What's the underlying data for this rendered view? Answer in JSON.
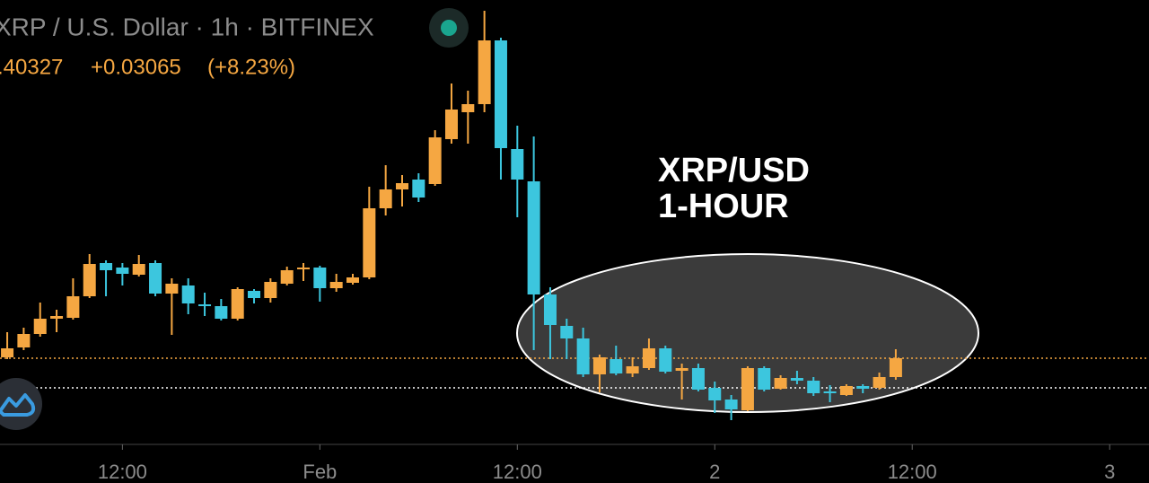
{
  "header": {
    "title": "XRP / U.S. Dollar · 1h · BITFINEX",
    "price": ".40327",
    "change": "+0.03065",
    "change_pct": "(+8.23%)"
  },
  "chart_data": {
    "type": "candlestick",
    "annotation": [
      "XRP/USD",
      "1-HOUR"
    ],
    "up_color": "#f5a742",
    "down_color": "#3cc6de",
    "x": [
      0,
      1,
      2,
      3,
      4,
      5,
      6,
      7,
      8,
      9,
      10,
      11,
      12,
      13,
      14,
      15,
      16,
      17,
      18,
      19,
      20,
      21,
      22,
      23,
      24,
      25,
      26,
      27,
      28,
      29,
      30,
      31,
      32,
      33,
      34,
      35,
      36,
      37,
      38,
      39,
      40,
      41,
      42,
      43,
      44,
      45,
      46,
      47,
      48,
      49,
      50,
      51,
      52,
      53,
      54
    ],
    "open": [
      0.4036,
      0.4069,
      0.4114,
      0.4165,
      0.4168,
      0.424,
      0.4351,
      0.4336,
      0.4312,
      0.4351,
      0.4249,
      0.4276,
      0.4213,
      0.4207,
      0.4165,
      0.4258,
      0.4234,
      0.4282,
      0.433,
      0.4336,
      0.4267,
      0.4285,
      0.4303,
      0.4534,
      0.4597,
      0.463,
      0.4615,
      0.4765,
      0.4855,
      0.4882,
      0.5095,
      0.4732,
      0.4624,
      0.4246,
      0.4141,
      0.4099,
      0.3979,
      0.403,
      0.3982,
      0.4,
      0.4066,
      0.3991,
      0.4,
      0.3934,
      0.3895,
      0.3859,
      0.4,
      0.3931,
      0.3967,
      0.3958,
      0.3922,
      0.391,
      0.394,
      0.3934,
      0.397
    ],
    "high": [
      0.412,
      0.4135,
      0.4219,
      0.4195,
      0.43,
      0.4381,
      0.436,
      0.4351,
      0.4378,
      0.436,
      0.43,
      0.43,
      0.4252,
      0.4231,
      0.427,
      0.4264,
      0.43,
      0.4339,
      0.4351,
      0.4342,
      0.4315,
      0.4315,
      0.4606,
      0.4678,
      0.4645,
      0.4651,
      0.4795,
      0.4951,
      0.4927,
      0.5194,
      0.5104,
      0.481,
      0.4774,
      0.427,
      0.4165,
      0.4135,
      0.4045,
      0.4075,
      0.4036,
      0.4099,
      0.4075,
      0.4015,
      0.4015,
      0.3955,
      0.391,
      0.4006,
      0.4006,
      0.3976,
      0.3991,
      0.397,
      0.3943,
      0.3946,
      0.3946,
      0.3985,
      0.4063
    ],
    "low": [
      0.403,
      0.406,
      0.4105,
      0.412,
      0.4162,
      0.4234,
      0.424,
      0.4276,
      0.4306,
      0.424,
      0.4111,
      0.418,
      0.4174,
      0.4159,
      0.4159,
      0.4216,
      0.4219,
      0.4276,
      0.4291,
      0.4222,
      0.4255,
      0.4279,
      0.4297,
      0.451,
      0.454,
      0.4555,
      0.4609,
      0.475,
      0.475,
      0.4855,
      0.463,
      0.4504,
      0.406,
      0.403,
      0.403,
      0.397,
      0.3919,
      0.3976,
      0.397,
      0.3994,
      0.3982,
      0.3895,
      0.3922,
      0.385,
      0.3826,
      0.3856,
      0.3922,
      0.3928,
      0.3946,
      0.3907,
      0.3886,
      0.3907,
      0.3916,
      0.3928,
      0.3961
    ],
    "close": [
      0.4066,
      0.4114,
      0.4165,
      0.4174,
      0.424,
      0.4348,
      0.4327,
      0.4315,
      0.4348,
      0.4249,
      0.4282,
      0.4216,
      0.4207,
      0.4165,
      0.4264,
      0.4234,
      0.4288,
      0.4327,
      0.4336,
      0.4267,
      0.4288,
      0.4303,
      0.4534,
      0.4597,
      0.4618,
      0.457,
      0.4771,
      0.4864,
      0.4882,
      0.5095,
      0.4735,
      0.463,
      0.4246,
      0.4144,
      0.4099,
      0.3979,
      0.4036,
      0.3982,
      0.4006,
      0.4066,
      0.3988,
      0.4,
      0.3928,
      0.3892,
      0.3862,
      0.4,
      0.3928,
      0.3967,
      0.3958,
      0.3916,
      0.3916,
      0.394,
      0.3931,
      0.397,
      0.4033
    ],
    "price_lines": [
      {
        "value": 0.4033,
        "color": "#f5a742"
      },
      {
        "value": 0.3934,
        "color": "#ffffff"
      }
    ],
    "xlim": [
      -0.44,
      69.39
    ],
    "xticks": [
      {
        "value": 7,
        "label": "12:00"
      },
      {
        "value": 19,
        "label": "Feb"
      },
      {
        "value": 31,
        "label": "12:00"
      },
      {
        "value": 43,
        "label": "2"
      },
      {
        "value": 55,
        "label": "12:00"
      },
      {
        "value": 67,
        "label": "3"
      }
    ],
    "ylim": [
      0.3745,
      0.523
    ]
  }
}
